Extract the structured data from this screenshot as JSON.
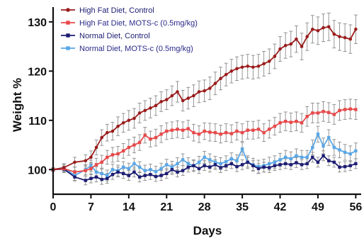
{
  "chart_data": {
    "type": "line",
    "xlabel": "Days",
    "ylabel": "Weight %",
    "xlim": [
      0,
      57
    ],
    "ylim": [
      95,
      133
    ],
    "xticks": [
      0,
      7,
      14,
      21,
      28,
      35,
      42,
      49,
      56
    ],
    "yticks": [
      100,
      110,
      120,
      130
    ],
    "legend_position": "top-left",
    "error_bars": true,
    "x": [
      0,
      2,
      4,
      6,
      7,
      8,
      9,
      10,
      11,
      12,
      13,
      14,
      15,
      16,
      17,
      18,
      19,
      20,
      21,
      22,
      23,
      24,
      25,
      26,
      27,
      28,
      29,
      30,
      31,
      32,
      33,
      34,
      35,
      36,
      37,
      38,
      39,
      40,
      41,
      42,
      43,
      44,
      45,
      46,
      47,
      48,
      49,
      50,
      51,
      52,
      53,
      54,
      55,
      56
    ],
    "series": [
      {
        "name": "High Fat Diet, Control",
        "color": "#9b1c1c",
        "marker": "circle",
        "values": [
          100,
          100.4,
          101.5,
          101.8,
          102.5,
          104.5,
          106.5,
          107.5,
          107.8,
          108.8,
          109.5,
          110,
          110.4,
          111.5,
          112,
          112.5,
          113,
          113.8,
          114.2,
          115,
          115.8,
          114,
          114.5,
          115,
          115.8,
          116,
          116.5,
          117.5,
          118.5,
          119.3,
          120,
          120.5,
          120.8,
          121,
          120.8,
          121,
          121.5,
          122,
          123,
          124.5,
          125.2,
          125.5,
          126.5,
          125,
          127,
          128.5,
          128.2,
          128.8,
          129,
          127.5,
          127,
          126.8,
          126.5,
          128.5
        ],
        "errors": [
          0.4,
          0.8,
          1,
          1.2,
          1.3,
          1.5,
          1.6,
          1.7,
          1.8,
          1.9,
          1.9,
          2,
          2,
          2,
          2,
          2,
          2,
          2,
          2,
          2,
          2.1,
          2.1,
          2.2,
          2.2,
          2.2,
          2.2,
          2.3,
          2.3,
          2.3,
          2.3,
          2.4,
          2.4,
          2.4,
          2.4,
          2.4,
          2.4,
          2.5,
          2.5,
          2.5,
          2.5,
          2.6,
          2.6,
          2.7,
          2.7,
          2.8,
          2.8,
          2.8,
          2.8,
          2.8,
          2.8,
          2.8,
          2.8,
          2.9,
          2.9
        ]
      },
      {
        "name": "High Fat Diet, MOTS-c (0.5mg/kg)",
        "color": "#e8494a",
        "marker": "square",
        "values": [
          100,
          100.2,
          99.5,
          99.8,
          100.2,
          101,
          101.5,
          102.5,
          103,
          103.2,
          103.8,
          104.5,
          105,
          105.5,
          107,
          106.2,
          106.5,
          107.2,
          107.8,
          108,
          108.2,
          108,
          108.3,
          107.5,
          107.2,
          107.8,
          107.6,
          107.5,
          107.2,
          107.5,
          107.3,
          107.8,
          107.5,
          108,
          108,
          108.2,
          107.5,
          108.2,
          108.8,
          109.5,
          109.8,
          109.6,
          109.8,
          109.5,
          110.8,
          111.5,
          111.5,
          111.8,
          111.6,
          111.2,
          112,
          112.2,
          112.3,
          112.2
        ],
        "errors": [
          0.4,
          0.8,
          1,
          1.1,
          1.2,
          1.3,
          1.4,
          1.4,
          1.5,
          1.5,
          1.5,
          1.6,
          1.6,
          1.6,
          1.6,
          1.6,
          1.7,
          1.7,
          1.7,
          1.7,
          1.7,
          1.7,
          1.7,
          1.7,
          1.7,
          1.7,
          1.8,
          1.8,
          1.8,
          1.8,
          1.8,
          1.8,
          1.8,
          1.8,
          1.8,
          1.8,
          1.8,
          1.8,
          1.8,
          1.9,
          1.9,
          1.9,
          1.9,
          1.9,
          2,
          2,
          2,
          2,
          2,
          2,
          2,
          2,
          2,
          2
        ]
      },
      {
        "name": "Normal Diet, Control",
        "color": "#1c1c73",
        "marker": "square",
        "values": [
          100,
          100.1,
          98.5,
          97.8,
          98.2,
          98.5,
          98,
          98.2,
          99,
          99.5,
          99.2,
          98.8,
          99.5,
          98.5,
          98.8,
          99,
          98.6,
          98.8,
          99.2,
          100,
          99.5,
          99.8,
          100.5,
          100.8,
          100.2,
          100.8,
          100.5,
          101,
          100.4,
          100.8,
          101.2,
          100.6,
          101,
          101.5,
          100.8,
          100.2,
          100.5,
          100.4,
          100.8,
          101,
          101.2,
          101,
          101.4,
          101,
          101.2,
          102.5,
          101.5,
          102.8,
          101.8,
          101.5,
          100.5,
          100.6,
          100.8,
          101.2
        ],
        "errors": [
          0.3,
          0.6,
          0.8,
          0.9,
          0.9,
          1,
          1,
          1,
          1,
          1,
          1,
          1,
          1,
          1,
          1,
          1,
          1,
          1,
          1,
          1,
          1,
          1,
          1,
          1,
          1,
          1,
          1,
          1,
          1,
          1,
          1,
          1,
          1,
          1,
          1,
          1,
          1,
          1,
          1,
          1,
          1,
          1,
          1,
          1,
          1,
          1,
          1,
          1,
          1,
          1,
          1,
          1,
          1,
          1
        ]
      },
      {
        "name": "Normal Diet, MOTS-c (0.5mg/kg)",
        "color": "#5aa7e6",
        "marker": "square",
        "values": [
          100,
          100.4,
          98.8,
          100,
          100.8,
          99.5,
          99.2,
          98.8,
          100,
          99.8,
          100.5,
          100.2,
          101.2,
          100.5,
          99.8,
          100,
          99.6,
          100.2,
          101,
          100.5,
          101.2,
          102,
          101.2,
          100.8,
          101.5,
          102.5,
          102,
          101.5,
          101.2,
          101.6,
          102.2,
          101.8,
          104.2,
          101.5,
          101,
          100.6,
          100.8,
          101.2,
          101.5,
          102,
          102.5,
          102.2,
          102.8,
          102.5,
          102.5,
          104.5,
          107.2,
          104.8,
          106.5,
          104.5,
          104,
          103.5,
          103.2,
          103.8
        ],
        "errors": [
          0.4,
          0.8,
          1,
          1,
          1.1,
          1.1,
          1.1,
          1.1,
          1.1,
          1.1,
          1.1,
          1.1,
          1.1,
          1.1,
          1.1,
          1.1,
          1.1,
          1.1,
          1.1,
          1.2,
          1.2,
          1.2,
          1.2,
          1.2,
          1.2,
          1.2,
          1.2,
          1.2,
          1.2,
          1.2,
          1.2,
          1.2,
          1.3,
          1.3,
          1.3,
          1.3,
          1.3,
          1.3,
          1.3,
          1.3,
          1.4,
          1.4,
          1.4,
          1.4,
          1.4,
          1.5,
          1.6,
          1.6,
          1.6,
          1.6,
          1.6,
          1.6,
          1.6,
          1.6
        ]
      }
    ]
  }
}
